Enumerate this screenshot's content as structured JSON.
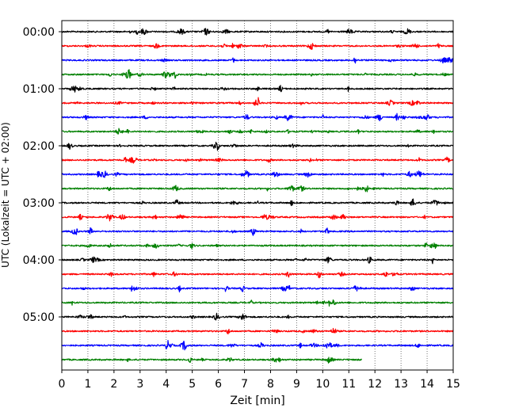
{
  "chart_data": {
    "type": "line",
    "title": "",
    "xlabel": "Zeit  [min]",
    "ylabel": "UTC (Lokalzeit = UTC + 02:00)",
    "xlim": [
      0,
      15
    ],
    "x_ticks": [
      "0",
      "1",
      "2",
      "3",
      "4",
      "5",
      "6",
      "7",
      "8",
      "9",
      "10",
      "11",
      "12",
      "13",
      "14",
      "15"
    ],
    "y_ticks": [
      "00:00",
      "01:00",
      "02:00",
      "03:00",
      "04:00",
      "05:00"
    ],
    "grid": "x-dotted",
    "line_minutes": 15,
    "last_trace_end_min": 11.5,
    "trace_colors": [
      "#000000",
      "#ff0000",
      "#0000ff",
      "#008000"
    ],
    "trace_start_times": [
      "00:00",
      "00:15",
      "00:30",
      "00:45",
      "01:00",
      "01:15",
      "01:30",
      "01:45",
      "02:00",
      "02:15",
      "02:30",
      "02:45",
      "03:00",
      "03:15",
      "03:30",
      "03:45",
      "04:00",
      "04:15",
      "04:30",
      "04:45",
      "05:00",
      "05:15",
      "05:30",
      "05:45"
    ]
  }
}
